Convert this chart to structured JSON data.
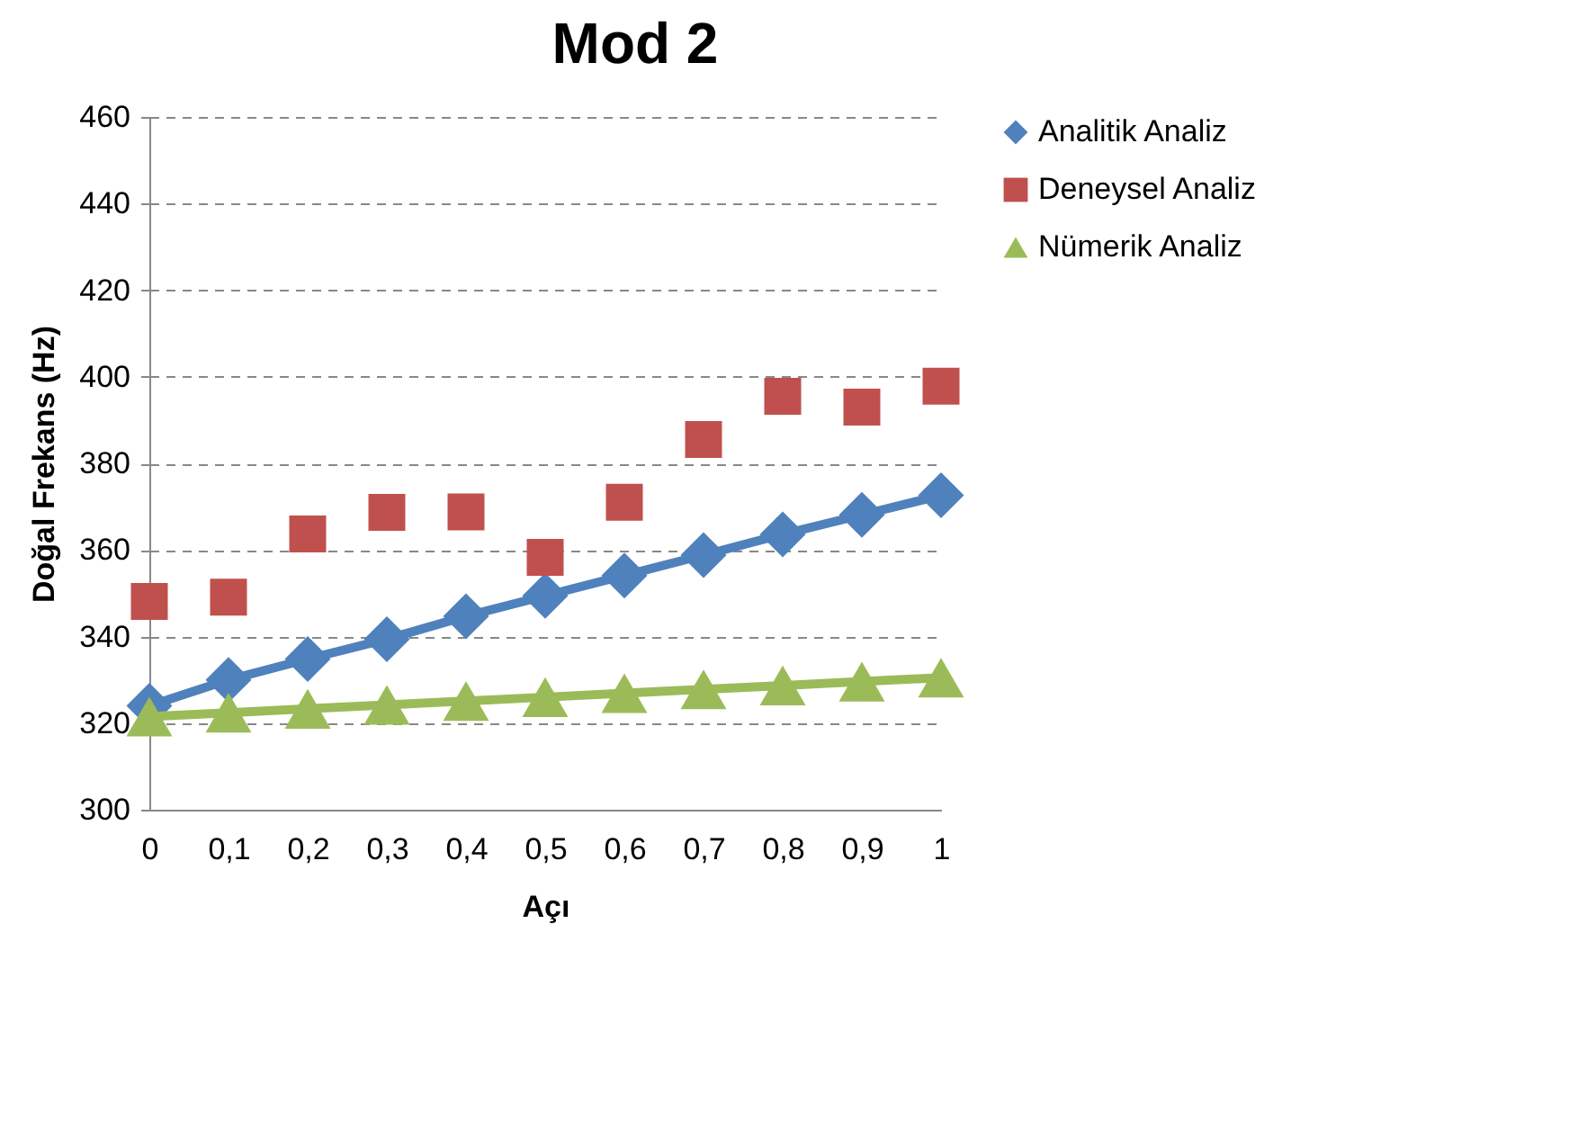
{
  "chart_data": {
    "type": "line",
    "title": "Mod 2",
    "xlabel": "Açı",
    "ylabel": "Doğal Frekans (Hz)",
    "categories": [
      "0",
      "0,1",
      "0,2",
      "0,3",
      "0,4",
      "0,5",
      "0,6",
      "0,7",
      "0,8",
      "0,9",
      "1"
    ],
    "series": [
      {
        "name": "Analitik Analiz",
        "color": "#4f81bd",
        "marker": "diamond",
        "values": [
          324,
          330,
          334.8,
          339.4,
          344.7,
          349.4,
          354.1,
          358.8,
          363.6,
          368.1,
          372.6
        ]
      },
      {
        "name": "Deneysel Analiz",
        "type": "scatter",
        "color": "#c0504d",
        "marker": "square",
        "values": [
          348.1,
          349.1,
          363.7,
          368.7,
          368.8,
          358.3,
          371,
          385.5,
          395.5,
          393,
          397.8
        ]
      },
      {
        "name": "Nümerik Analiz",
        "color": "#9bbb59",
        "marker": "triangle",
        "values": [
          321.5,
          322.4,
          323.3,
          324.2,
          325.1,
          326,
          326.9,
          327.8,
          328.7,
          329.6,
          330.5
        ]
      }
    ],
    "ylim": [
      300,
      460
    ],
    "yticks": [
      300,
      320,
      340,
      360,
      380,
      400,
      420,
      440,
      460
    ],
    "grid": "y",
    "legend": "right"
  }
}
